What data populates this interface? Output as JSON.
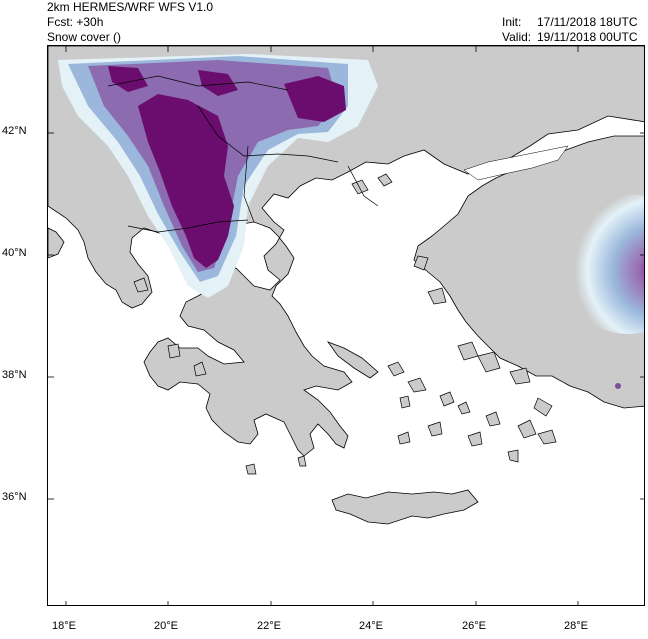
{
  "header": {
    "model": "2km HERMES/WRF WFS V1.0",
    "forecast": "Fcst: +30h",
    "field": "Snow cover ()",
    "init_label": "Init:",
    "init_value": "17/11/2018 18UTC",
    "valid_label": "Valid:",
    "valid_value": "19/11/2018 00UTC"
  },
  "axes": {
    "x_ticks": [
      "18°E",
      "20°E",
      "22°E",
      "24°E",
      "26°E",
      "28°E"
    ],
    "y_ticks": [
      "42°N",
      "40°N",
      "38°N",
      "36°N"
    ]
  },
  "colors": {
    "land": "#cbcbcb",
    "sea": "#ffffff",
    "snow_light": "#e4f2f8",
    "snow_medium": "#9bb8dc",
    "snow_high": "#7c4f9c",
    "snow_max": "#6a0d6e"
  }
}
